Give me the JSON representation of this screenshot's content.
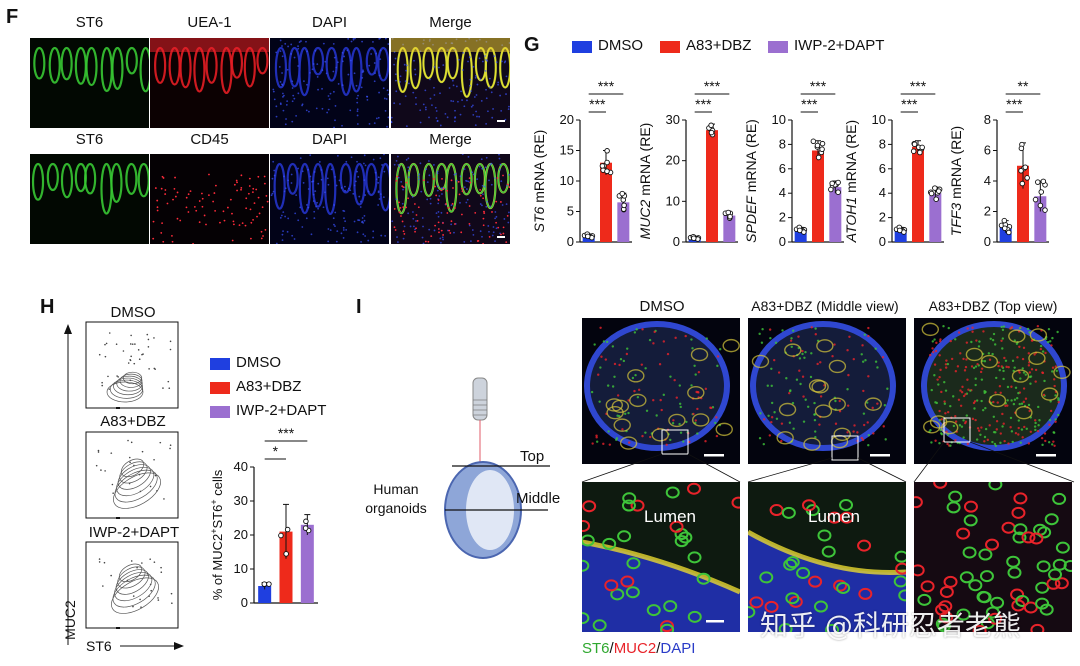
{
  "colors": {
    "dmso": "#1f3fe0",
    "a83": "#ee2a1b",
    "iwp": "#9b6fd0",
    "green": "#3ec43a",
    "red": "#e8232a",
    "blue": "#2a3cc8"
  },
  "panelF": {
    "letter": "F",
    "row1": [
      "ST6",
      "UEA-1",
      "DAPI",
      "Merge"
    ],
    "row2": [
      "ST6",
      "CD45",
      "DAPI",
      "Merge"
    ],
    "row1_tints": [
      "green",
      "red",
      "blue",
      "merge1"
    ],
    "row2_tints": [
      "green",
      "redsparse",
      "blue",
      "merge2"
    ]
  },
  "panelG": {
    "letter": "G",
    "legend": [
      "DMSO",
      "A83+DBZ",
      "IWP-2+DAPT"
    ]
  },
  "panelH": {
    "letter": "H",
    "flow_labels": [
      "DMSO",
      "A83+DBZ",
      "IWP-2+DAPT"
    ],
    "y_axis": "MUC2",
    "x_axis": "ST6",
    "legend": [
      "DMSO",
      "A83+DBZ",
      "IWP-2+DAPT"
    ]
  },
  "panelI": {
    "letter": "I",
    "col_titles": [
      "DMSO",
      "A83+DBZ (Middle view)",
      "A83+DBZ (Top view)"
    ],
    "lumen": [
      "Lumen",
      "Lumen"
    ],
    "diagram": {
      "top": "Top",
      "middle": "Middle",
      "organoids_l1": "Human",
      "organoids_l2": "organoids"
    },
    "stain": {
      "st6": "ST6",
      "sep1": "/",
      "muc2": "MUC2",
      "sep2": "/",
      "dapi": "DAPI"
    }
  },
  "watermark": "知乎 @科研忍者老熊",
  "chart_data": [
    {
      "type": "bar",
      "id": "G-ST6",
      "ylabel": "ST6 mRNA (RE)",
      "ylabel_italic": "ST6",
      "ylabel_rest": " mRNA (RE)",
      "categories": [
        "DMSO",
        "A83+DBZ",
        "IWP-2+DAPT"
      ],
      "values": [
        1,
        13,
        6.5
      ],
      "errors": [
        0.3,
        2,
        1.5
      ],
      "ylim": [
        0,
        20
      ],
      "yticks": [
        "0",
        "5",
        "10",
        "15",
        "20"
      ],
      "sig": [
        {
          "pair": [
            0,
            1
          ],
          "label": "***"
        },
        {
          "pair": [
            0,
            2
          ],
          "label": "***"
        }
      ]
    },
    {
      "type": "bar",
      "id": "G-MUC2",
      "ylabel": "MUC2 mRNA (RE)",
      "ylabel_italic": "MUC2",
      "ylabel_rest": " mRNA (RE)",
      "categories": [
        "DMSO",
        "A83+DBZ",
        "IWP-2+DAPT"
      ],
      "values": [
        1,
        27.5,
        6.5
      ],
      "errors": [
        0.3,
        1.5,
        0.8
      ],
      "ylim": [
        0,
        30
      ],
      "yticks": [
        "0",
        "10",
        "20",
        "30"
      ],
      "sig": [
        {
          "pair": [
            0,
            1
          ],
          "label": "***"
        },
        {
          "pair": [
            0,
            2
          ],
          "label": "***"
        }
      ]
    },
    {
      "type": "bar",
      "id": "G-SPDEF",
      "ylabel": "SPDEF mRNA (RE)",
      "ylabel_italic": "SPDEF",
      "ylabel_rest": " mRNA (RE)",
      "categories": [
        "DMSO",
        "A83+DBZ",
        "IWP-2+DAPT"
      ],
      "values": [
        1,
        7.5,
        4.5
      ],
      "errors": [
        0.2,
        0.8,
        0.5
      ],
      "ylim": [
        0,
        10
      ],
      "yticks": [
        "0",
        "2",
        "4",
        "6",
        "8",
        "10"
      ],
      "sig": [
        {
          "pair": [
            0,
            1
          ],
          "label": "***"
        },
        {
          "pair": [
            0,
            2
          ],
          "label": "***"
        }
      ]
    },
    {
      "type": "bar",
      "id": "G-ATOH1",
      "ylabel": "ATOH1 mRNA (RE)",
      "ylabel_italic": "ATOH1",
      "ylabel_rest": " mRNA (RE)",
      "categories": [
        "DMSO",
        "A83+DBZ",
        "IWP-2+DAPT"
      ],
      "values": [
        1,
        7.8,
        4
      ],
      "errors": [
        0.2,
        0.5,
        0.5
      ],
      "ylim": [
        0,
        10
      ],
      "yticks": [
        "0",
        "2",
        "4",
        "6",
        "8",
        "10"
      ],
      "sig": [
        {
          "pair": [
            0,
            1
          ],
          "label": "***"
        },
        {
          "pair": [
            0,
            2
          ],
          "label": "***"
        }
      ]
    },
    {
      "type": "bar",
      "id": "G-TFF3",
      "ylabel": "TFF3 mRNA (RE)",
      "ylabel_italic": "TFF3",
      "ylabel_rest": " mRNA (RE)",
      "categories": [
        "DMSO",
        "A83+DBZ",
        "IWP-2+DAPT"
      ],
      "values": [
        1,
        5,
        3
      ],
      "errors": [
        0.4,
        1.5,
        1
      ],
      "ylim": [
        0,
        8
      ],
      "yticks": [
        "0",
        "2",
        "4",
        "6",
        "8"
      ],
      "sig": [
        {
          "pair": [
            0,
            1
          ],
          "label": "***"
        },
        {
          "pair": [
            0,
            2
          ],
          "label": "**"
        }
      ]
    },
    {
      "type": "bar",
      "id": "H-bar",
      "ylabel": "% of MUC2+ST6+ cells",
      "ylabel_parts": [
        "% of MUC2",
        "+",
        "ST6",
        "+",
        " cells"
      ],
      "categories": [
        "DMSO",
        "A83+DBZ",
        "IWP-2+DAPT"
      ],
      "values": [
        5,
        21,
        23
      ],
      "errors": [
        1,
        8,
        3
      ],
      "ylim": [
        0,
        40
      ],
      "yticks": [
        "0",
        "10",
        "20",
        "30",
        "40"
      ],
      "sig": [
        {
          "pair": [
            0,
            1
          ],
          "label": "*"
        },
        {
          "pair": [
            0,
            2
          ],
          "label": "***"
        }
      ]
    }
  ]
}
